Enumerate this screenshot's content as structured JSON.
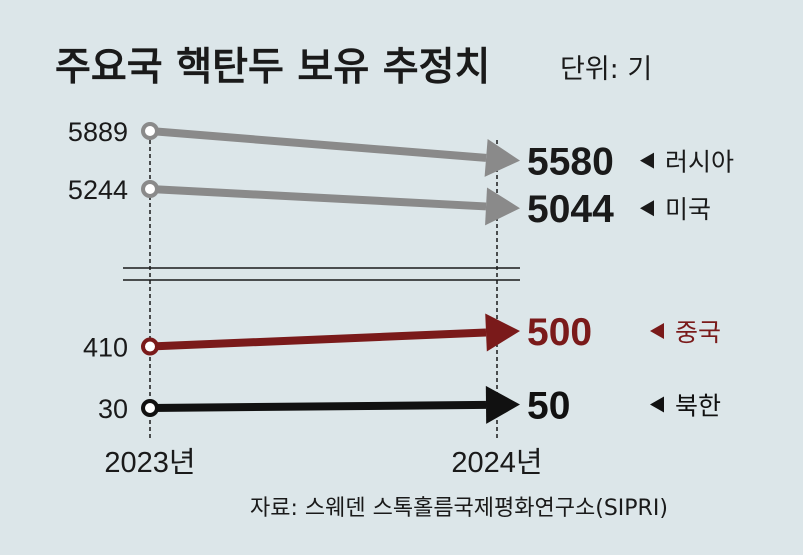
{
  "chart_data": {
    "type": "line",
    "title": "주요국 핵탄두 보유 추정치",
    "unit": "단위: 기",
    "x": [
      "2023년",
      "2024년"
    ],
    "series": [
      {
        "name": "러시아",
        "values": [
          5889,
          5580
        ],
        "color": "#8a8a8a"
      },
      {
        "name": "미국",
        "values": [
          5244,
          5044
        ],
        "color": "#8a8a8a"
      },
      {
        "name": "중국",
        "values": [
          410,
          500
        ],
        "color": "#7a1a1a"
      },
      {
        "name": "북한",
        "values": [
          30,
          50
        ],
        "color": "#111111"
      }
    ],
    "axis_break": true,
    "source": "자료: 스웨덴 스톡홀름국제평화연구소(SIPRI)"
  }
}
